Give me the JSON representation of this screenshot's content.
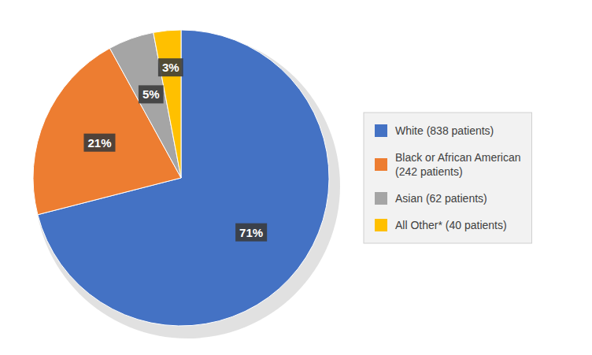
{
  "chart_data": {
    "type": "pie",
    "categories": [
      "White (838 patients)",
      "Black or African American\n(242 patients)",
      "Asian (62 patients)",
      "All Other* (40 patients)"
    ],
    "values": [
      71,
      21,
      5,
      3
    ],
    "value_labels": [
      "71%",
      "21%",
      "5%",
      "3%"
    ],
    "colors": [
      "#4472C4",
      "#ED7D31",
      "#A5A5A5",
      "#FFC000"
    ],
    "data_labels": true,
    "legend": "right"
  }
}
